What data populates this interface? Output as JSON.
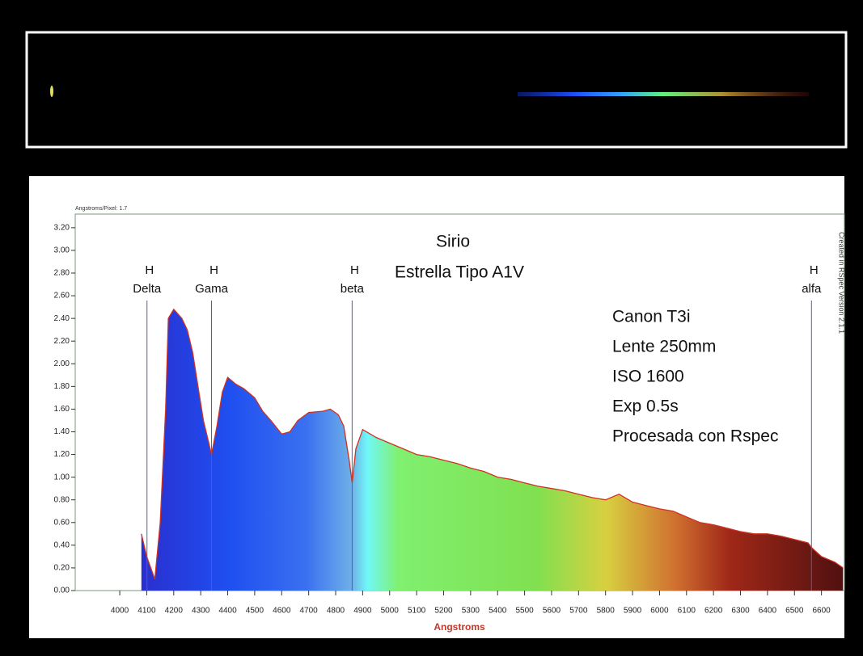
{
  "chart_data": {
    "type": "area",
    "scale_note": "Angstroms/Pixel: 1.7",
    "title": "Sirio",
    "subtitle": "Estrella Tipo A1V",
    "credit": "Created in RSpec Version 2.1.1",
    "x_label": "Angstroms",
    "notes": [
      "Canon T3i",
      "Lente 250mm",
      "ISO 1600",
      "Exp 0.5s",
      "Procesada con Rspec"
    ],
    "annotations": [
      {
        "x": 4101,
        "lines": [
          "H",
          "Delta"
        ]
      },
      {
        "x": 4340,
        "lines": [
          "H",
          "Gama"
        ]
      },
      {
        "x": 4861,
        "lines": [
          "H",
          "beta"
        ]
      },
      {
        "x": 6563,
        "lines": [
          "H",
          "alfa"
        ]
      }
    ],
    "x": [
      4080,
      4100,
      4130,
      4150,
      4170,
      4180,
      4200,
      4230,
      4250,
      4270,
      4290,
      4310,
      4330,
      4340,
      4360,
      4380,
      4400,
      4430,
      4460,
      4500,
      4530,
      4560,
      4600,
      4630,
      4660,
      4700,
      4750,
      4780,
      4810,
      4830,
      4850,
      4861,
      4875,
      4900,
      4950,
      5000,
      5050,
      5100,
      5150,
      5200,
      5250,
      5300,
      5350,
      5400,
      5450,
      5500,
      5550,
      5600,
      5650,
      5700,
      5750,
      5800,
      5850,
      5900,
      5950,
      6000,
      6050,
      6100,
      6150,
      6200,
      6250,
      6300,
      6350,
      6400,
      6450,
      6500,
      6550,
      6563,
      6600,
      6650,
      6680
    ],
    "series": [
      {
        "name": "Sirio",
        "color": "#d03020",
        "values": [
          0.5,
          0.3,
          0.1,
          0.6,
          1.6,
          2.4,
          2.48,
          2.4,
          2.3,
          2.1,
          1.8,
          1.5,
          1.3,
          1.2,
          1.45,
          1.75,
          1.88,
          1.82,
          1.78,
          1.7,
          1.58,
          1.5,
          1.38,
          1.4,
          1.5,
          1.57,
          1.58,
          1.6,
          1.55,
          1.45,
          1.15,
          0.95,
          1.25,
          1.42,
          1.35,
          1.3,
          1.25,
          1.2,
          1.18,
          1.15,
          1.12,
          1.08,
          1.05,
          1.0,
          0.98,
          0.95,
          0.92,
          0.9,
          0.88,
          0.85,
          0.82,
          0.8,
          0.85,
          0.78,
          0.75,
          0.72,
          0.7,
          0.65,
          0.6,
          0.58,
          0.55,
          0.52,
          0.5,
          0.5,
          0.48,
          0.45,
          0.42,
          0.38,
          0.3,
          0.25,
          0.2
        ]
      }
    ],
    "xlim": [
      3835,
      6685
    ],
    "ylim": [
      0,
      3.32
    ],
    "xticks": [
      4000,
      4100,
      4200,
      4300,
      4400,
      4500,
      4600,
      4700,
      4800,
      4900,
      5000,
      5100,
      5200,
      5300,
      5400,
      5500,
      5600,
      5700,
      5800,
      5900,
      6000,
      6100,
      6200,
      6300,
      6400,
      6500,
      6600
    ],
    "yticks": [
      {
        "value": 0,
        "label": "0.00"
      },
      {
        "value": 0.2,
        "label": "0.20"
      },
      {
        "value": 0.4,
        "label": "0.40"
      },
      {
        "value": 0.6,
        "label": "0.60"
      },
      {
        "value": 0.8,
        "label": "0.80"
      },
      {
        "value": 1,
        "label": "1.00"
      },
      {
        "value": 1.2,
        "label": "1.20"
      },
      {
        "value": 1.4,
        "label": "1.40"
      },
      {
        "value": 1.6,
        "label": "1.60"
      },
      {
        "value": 1.8,
        "label": "1.80"
      },
      {
        "value": 2,
        "label": "2.00"
      },
      {
        "value": 2.2,
        "label": "2.20"
      },
      {
        "value": 2.4,
        "label": "2.40"
      },
      {
        "value": 2.6,
        "label": "2.60"
      },
      {
        "value": 2.8,
        "label": "2.80"
      },
      {
        "value": 3,
        "label": "3.00"
      },
      {
        "value": 3.2,
        "label": "3.20"
      }
    ],
    "axis_label_color": "#c0392b"
  }
}
